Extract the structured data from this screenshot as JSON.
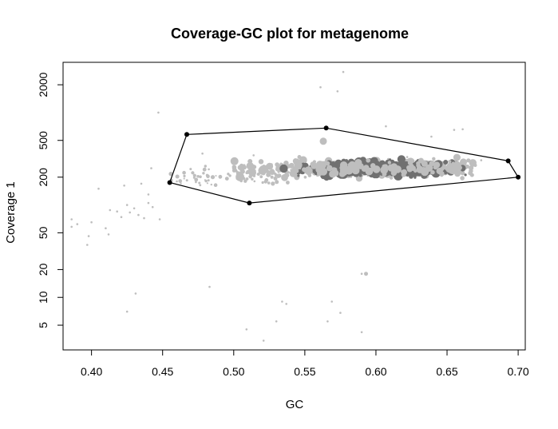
{
  "chart_data": {
    "type": "scatter",
    "title": "Coverage-GC plot for metagenome",
    "xlabel": "GC",
    "ylabel": "Coverage 1",
    "x_ticks": [
      0.4,
      0.45,
      0.5,
      0.55,
      0.6,
      0.65,
      0.7
    ],
    "x_tick_labels": [
      "0.40",
      "0.45",
      "0.50",
      "0.55",
      "0.60",
      "0.65",
      "0.70"
    ],
    "y_ticks": [
      5,
      10,
      20,
      50,
      200,
      500,
      2000
    ],
    "y_tick_labels": [
      "5",
      "10",
      "20",
      "50",
      "200",
      "500",
      "2000"
    ],
    "xlim": [
      0.38,
      0.705
    ],
    "ylim": [
      2.7,
      3500
    ],
    "y_scale": "log",
    "grid": false,
    "colors": {
      "light": "#bebebe",
      "dark": "#707070",
      "polygon": "#000000"
    },
    "polygon": [
      {
        "x": 0.467,
        "y": 580
      },
      {
        "x": 0.565,
        "y": 680
      },
      {
        "x": 0.693,
        "y": 300
      },
      {
        "x": 0.7,
        "y": 200
      },
      {
        "x": 0.511,
        "y": 105
      },
      {
        "x": 0.455,
        "y": 175
      }
    ],
    "outliers": [
      {
        "x": 0.386,
        "y": 70
      },
      {
        "x": 0.39,
        "y": 62
      },
      {
        "x": 0.386,
        "y": 58
      },
      {
        "x": 0.397,
        "y": 37
      },
      {
        "x": 0.398,
        "y": 46
      },
      {
        "x": 0.4,
        "y": 65
      },
      {
        "x": 0.41,
        "y": 56
      },
      {
        "x": 0.412,
        "y": 48
      },
      {
        "x": 0.413,
        "y": 88
      },
      {
        "x": 0.418,
        "y": 85
      },
      {
        "x": 0.421,
        "y": 74
      },
      {
        "x": 0.425,
        "y": 100
      },
      {
        "x": 0.427,
        "y": 83
      },
      {
        "x": 0.43,
        "y": 92
      },
      {
        "x": 0.433,
        "y": 78
      },
      {
        "x": 0.437,
        "y": 72
      },
      {
        "x": 0.44,
        "y": 105
      },
      {
        "x": 0.443,
        "y": 95
      },
      {
        "x": 0.448,
        "y": 70
      },
      {
        "x": 0.405,
        "y": 150
      },
      {
        "x": 0.423,
        "y": 162
      },
      {
        "x": 0.435,
        "y": 170
      },
      {
        "x": 0.44,
        "y": 130
      },
      {
        "x": 0.442,
        "y": 250
      },
      {
        "x": 0.447,
        "y": 1000
      },
      {
        "x": 0.46,
        "y": 180
      },
      {
        "x": 0.425,
        "y": 7
      },
      {
        "x": 0.431,
        "y": 11
      },
      {
        "x": 0.483,
        "y": 13
      },
      {
        "x": 0.509,
        "y": 4.5
      },
      {
        "x": 0.521,
        "y": 3.4
      },
      {
        "x": 0.53,
        "y": 5.5
      },
      {
        "x": 0.534,
        "y": 9
      },
      {
        "x": 0.537,
        "y": 8.5
      },
      {
        "x": 0.561,
        "y": 1880
      },
      {
        "x": 0.566,
        "y": 5.5
      },
      {
        "x": 0.569,
        "y": 9
      },
      {
        "x": 0.573,
        "y": 1700
      },
      {
        "x": 0.575,
        "y": 6.8
      },
      {
        "x": 0.577,
        "y": 2750
      },
      {
        "x": 0.59,
        "y": 18
      },
      {
        "x": 0.59,
        "y": 4.2
      },
      {
        "x": 0.607,
        "y": 710
      },
      {
        "x": 0.639,
        "y": 550
      },
      {
        "x": 0.655,
        "y": 650
      },
      {
        "x": 0.661,
        "y": 660
      },
      {
        "x": 0.674,
        "y": 305
      },
      {
        "x": 0.622,
        "y": 330
      },
      {
        "x": 0.478,
        "y": 360
      },
      {
        "x": 0.514,
        "y": 345
      }
    ],
    "highlight_points": [
      {
        "x": 0.563,
        "y": 490,
        "r": 4.5
      },
      {
        "x": 0.593,
        "y": 18,
        "r": 2.5
      }
    ]
  }
}
